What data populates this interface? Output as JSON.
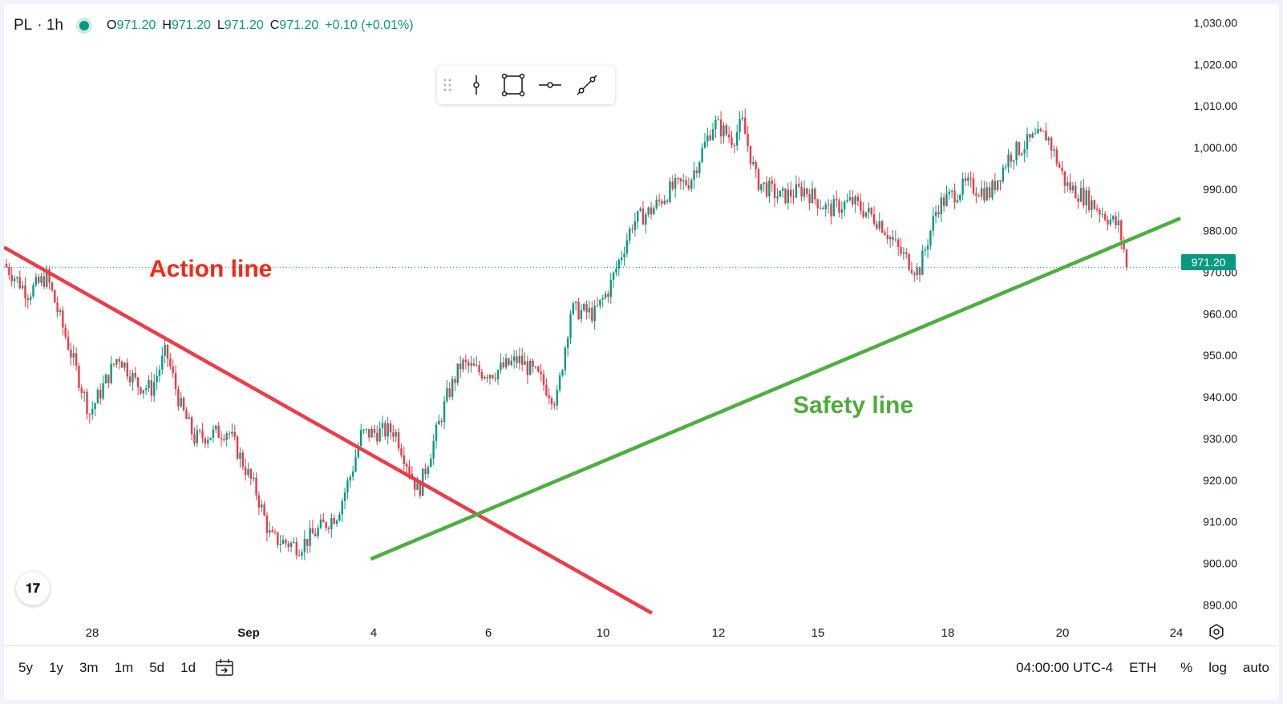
{
  "legend": {
    "symbol": "PL",
    "interval": "· 1h",
    "open_label": "O",
    "open": "971.20",
    "high_label": "H",
    "high": "971.20",
    "low_label": "L",
    "low": "971.20",
    "close_label": "C",
    "close": "971.20",
    "change": "+0.10 (+0.01%)"
  },
  "colors": {
    "up": "#089981",
    "down": "#f23645",
    "action_line": "#ef3b48",
    "safety_line": "#4caf40",
    "accent": "#089981"
  },
  "drawing_toolbar": {
    "icons": [
      "drag-handle-icon",
      "vertical-line-icon",
      "rectangle-icon",
      "horizontal-ray-icon",
      "trend-line-icon"
    ]
  },
  "last_price_label": "971.20",
  "annotations": {
    "action": "Action line",
    "safety": "Safety line"
  },
  "chart_data": {
    "type": "candlestick",
    "title": "",
    "ylim": [
      886,
      1033
    ],
    "y_ticks": [
      "1,030.00",
      "1,020.00",
      "1,010.00",
      "1,000.00",
      "990.00",
      "980.00",
      "970.00",
      "960.00",
      "950.00",
      "940.00",
      "930.00",
      "920.00",
      "910.00",
      "900.00",
      "890.00"
    ],
    "x_ticks": [
      "28",
      "Sep",
      "4",
      "6",
      "10",
      "12",
      "15",
      "18",
      "20",
      "24"
    ],
    "last_price": 971.2,
    "price_path": [
      [
        0,
        972
      ],
      [
        0.05,
        965
      ],
      [
        0.09,
        969
      ],
      [
        0.18,
        936
      ],
      [
        0.24,
        950
      ],
      [
        0.28,
        943
      ],
      [
        0.31,
        942
      ],
      [
        0.34,
        951
      ],
      [
        0.37,
        938
      ],
      [
        0.4,
        930
      ],
      [
        0.47,
        932
      ],
      [
        0.53,
        917
      ],
      [
        0.56,
        906
      ],
      [
        0.62,
        904
      ],
      [
        0.66,
        908
      ],
      [
        0.7,
        912
      ],
      [
        0.73,
        922
      ],
      [
        0.75,
        931
      ],
      [
        0.82,
        932
      ],
      [
        0.87,
        917
      ],
      [
        0.93,
        940
      ],
      [
        0.96,
        948
      ],
      [
        1.0,
        946
      ],
      [
        1.03,
        946
      ],
      [
        1.08,
        949
      ],
      [
        1.12,
        945
      ],
      [
        1.16,
        939
      ],
      [
        1.19,
        961
      ],
      [
        1.24,
        960
      ],
      [
        1.27,
        966
      ],
      [
        1.32,
        982
      ],
      [
        1.36,
        985
      ],
      [
        1.4,
        990
      ],
      [
        1.44,
        992
      ],
      [
        1.49,
        1006
      ],
      [
        1.53,
        1002
      ],
      [
        1.55,
        1006
      ],
      [
        1.58,
        992
      ],
      [
        1.63,
        988
      ],
      [
        1.68,
        990
      ],
      [
        1.73,
        985
      ],
      [
        1.78,
        987
      ],
      [
        1.84,
        982
      ],
      [
        1.88,
        975
      ],
      [
        1.92,
        970
      ],
      [
        1.96,
        986
      ],
      [
        2.02,
        991
      ],
      [
        2.07,
        989
      ],
      [
        2.11,
        998
      ],
      [
        2.16,
        1002
      ],
      [
        2.19,
        1003
      ],
      [
        2.23,
        991
      ],
      [
        2.27,
        988
      ],
      [
        2.31,
        984
      ],
      [
        2.34,
        981
      ],
      [
        2.36,
        971.2
      ]
    ],
    "trend_lines": [
      {
        "name": "Action line",
        "color": "#ef3b48",
        "points": [
          [
            0,
            976
          ],
          [
            1.36,
            888
          ]
        ]
      },
      {
        "name": "Safety line",
        "color": "#4caf40",
        "points": [
          [
            0.77,
            901
          ],
          [
            2.47,
            983
          ]
        ]
      }
    ]
  },
  "bottom_bar": {
    "ranges": [
      "5y",
      "1y",
      "3m",
      "1m",
      "5d",
      "1d"
    ],
    "time": "04:00:00 UTC-4",
    "session": "ETH",
    "percent": "%",
    "log": "log",
    "auto": "auto"
  }
}
